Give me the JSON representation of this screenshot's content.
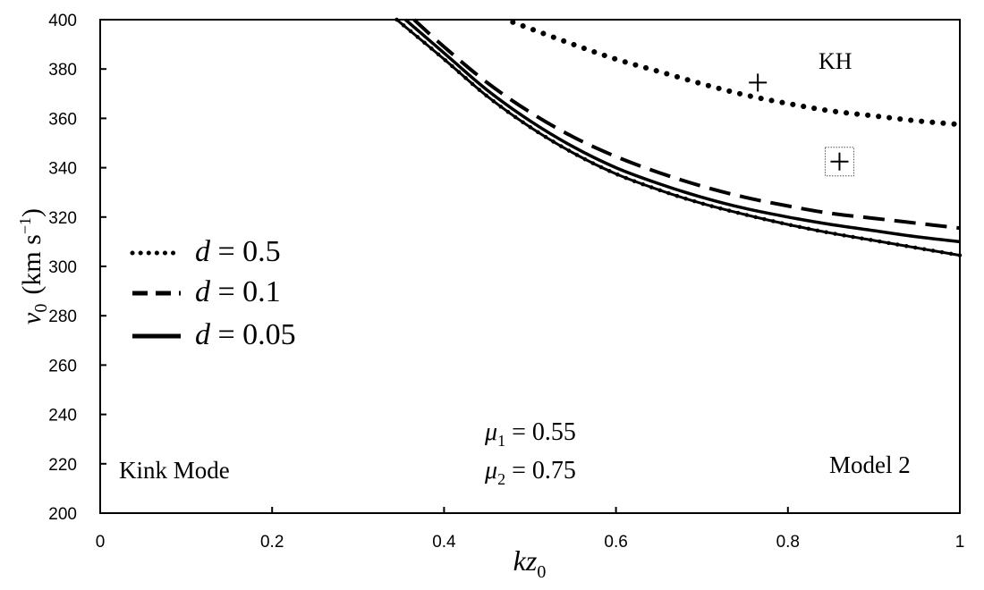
{
  "chart_data": {
    "type": "line",
    "title": "",
    "xlabel": {
      "base": "kz",
      "sub": "0"
    },
    "ylabel": {
      "base": "v",
      "sub": "0",
      "unit_main": "(km s",
      "unit_sup": "−1",
      "unit_close": ")"
    },
    "xlim": [
      0,
      1
    ],
    "ylim": [
      200,
      400
    ],
    "xticks": [
      "0",
      "0.2",
      "0.4",
      "0.6",
      "0.8",
      "1"
    ],
    "yticks": [
      "200",
      "220",
      "240",
      "260",
      "280",
      "300",
      "320",
      "340",
      "360",
      "380",
      "400"
    ],
    "grid": false,
    "legend_position": "left",
    "series": [
      {
        "name": "d = 0.5",
        "legend": {
          "var": "d",
          "eq": " = 0.5"
        },
        "style": "dotted",
        "x": [
          0.48,
          0.55,
          0.6,
          0.65,
          0.7,
          0.75,
          0.8,
          0.85,
          0.9,
          0.95,
          1.0
        ],
        "y": [
          399,
          390,
          384,
          379,
          374,
          369.5,
          366,
          363,
          361,
          359,
          357.5
        ]
      },
      {
        "name": "d = 0.1",
        "legend": {
          "var": "d",
          "eq": " = 0.1"
        },
        "style": "dashed",
        "x": [
          0.365,
          0.4,
          0.45,
          0.5,
          0.55,
          0.6,
          0.65,
          0.7,
          0.75,
          0.8,
          0.85,
          0.9,
          0.95,
          1.0
        ],
        "y": [
          400,
          389,
          374.5,
          362.5,
          352.5,
          344.5,
          338,
          332.5,
          328,
          324.5,
          321.5,
          319.5,
          317.5,
          315.5
        ]
      },
      {
        "name": "d = 0.05",
        "legend": {
          "var": "d",
          "eq": " = 0.05"
        },
        "style": "solid",
        "x": [
          0.355,
          0.4,
          0.45,
          0.5,
          0.55,
          0.6,
          0.65,
          0.7,
          0.75,
          0.8,
          0.85,
          0.9,
          0.95,
          1.0
        ],
        "y": [
          400,
          386.5,
          371.5,
          359,
          348.5,
          340,
          333.5,
          328,
          323.5,
          320,
          317,
          314.5,
          312,
          310
        ]
      },
      {
        "name": "",
        "style": "solid-dotted",
        "x": [
          0.345,
          0.4,
          0.45,
          0.5,
          0.55,
          0.6,
          0.65,
          0.7,
          0.75,
          0.8,
          0.85,
          0.9,
          0.95,
          1.0
        ],
        "y": [
          400,
          384,
          369,
          356.5,
          346,
          337.5,
          331,
          325.5,
          321,
          317,
          313.5,
          310.5,
          307.5,
          304.5
        ]
      }
    ],
    "markers": [
      {
        "x": 0.765,
        "y": 374.5,
        "boxed": false
      },
      {
        "x": 0.86,
        "y": 342.5,
        "boxed": true
      }
    ],
    "annotations": {
      "kh": "KH",
      "mode": "Kink Mode",
      "model": "Model 2",
      "mu1": {
        "var": "μ",
        "sub": "1",
        "eq": " = 0.55"
      },
      "mu2": {
        "var": "μ",
        "sub": "2",
        "eq": " = 0.75"
      }
    }
  }
}
